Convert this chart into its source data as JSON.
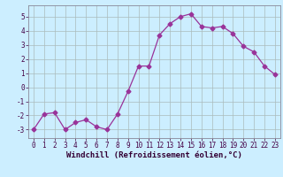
{
  "x": [
    0,
    1,
    2,
    3,
    4,
    5,
    6,
    7,
    8,
    9,
    10,
    11,
    12,
    13,
    14,
    15,
    16,
    17,
    18,
    19,
    20,
    21,
    22,
    23
  ],
  "y": [
    -3.0,
    -1.9,
    -1.8,
    -3.0,
    -2.5,
    -2.3,
    -2.8,
    -3.0,
    -1.9,
    -0.3,
    1.5,
    1.5,
    3.7,
    4.5,
    5.0,
    5.2,
    4.3,
    4.2,
    4.3,
    3.8,
    2.9,
    2.5,
    1.5,
    0.9
  ],
  "xlabel": "Windchill (Refroidissement éolien,°C)",
  "xlim": [
    -0.5,
    23.5
  ],
  "ylim": [
    -3.6,
    5.8
  ],
  "yticks": [
    -3,
    -2,
    -1,
    0,
    1,
    2,
    3,
    4,
    5
  ],
  "xticks": [
    0,
    1,
    2,
    3,
    4,
    5,
    6,
    7,
    8,
    9,
    10,
    11,
    12,
    13,
    14,
    15,
    16,
    17,
    18,
    19,
    20,
    21,
    22,
    23
  ],
  "line_color": "#993399",
  "marker": "D",
  "marker_size": 2.5,
  "bg_color": "#cceeff",
  "grid_color": "#aabbbb",
  "tick_fontsize": 5.5,
  "label_fontsize": 6.5
}
